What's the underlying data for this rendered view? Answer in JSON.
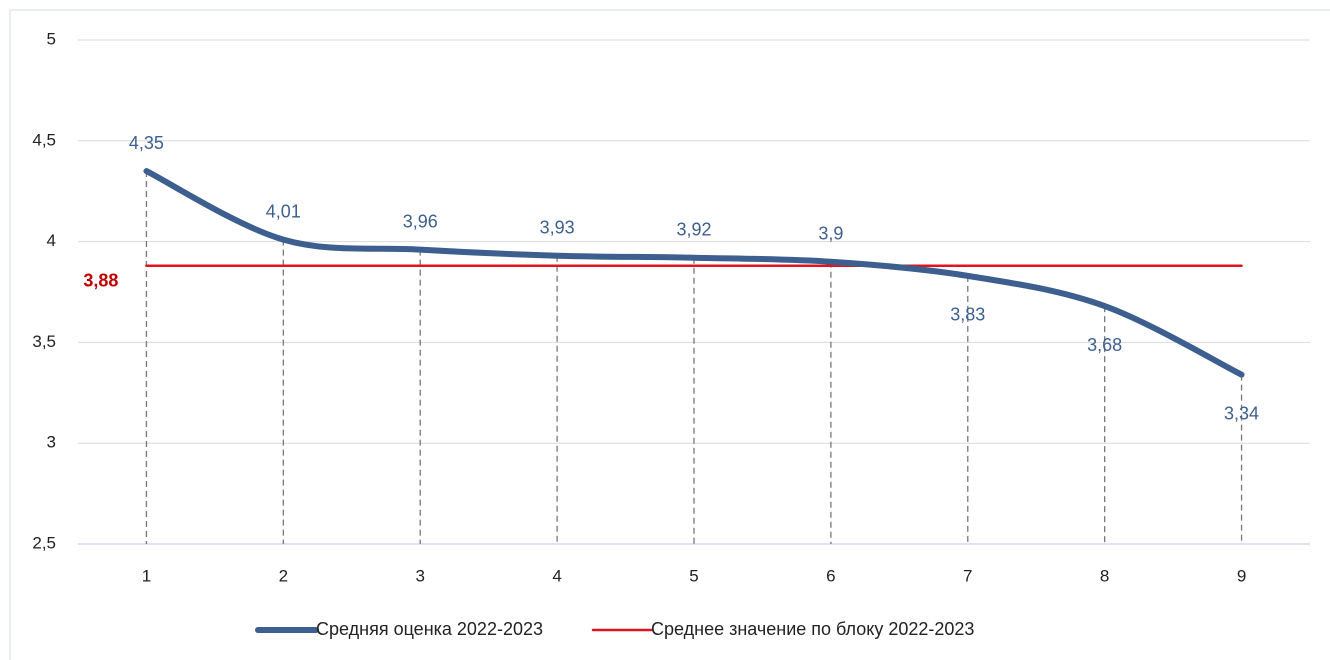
{
  "chart_data": {
    "type": "line",
    "categories": [
      "1",
      "2",
      "3",
      "4",
      "5",
      "6",
      "7",
      "8",
      "9"
    ],
    "series": [
      {
        "name": "Средняя оценка 2022-2023",
        "color": "#3d5f8f",
        "smooth": true,
        "values": [
          4.35,
          4.01,
          3.96,
          3.93,
          3.92,
          3.9,
          3.83,
          3.68,
          3.34
        ],
        "value_labels": [
          "4,35",
          "4,01",
          "3,96",
          "3,93",
          "3,92",
          "3,9",
          "3,83",
          "3,68",
          "3,34"
        ]
      },
      {
        "name": "Среднее значение по блоку 2022-2023",
        "color": "#e0141e",
        "smooth": false,
        "values": [
          3.88,
          3.88,
          3.88,
          3.88,
          3.88,
          3.88,
          3.88,
          3.88,
          3.88
        ],
        "value_labels": [
          "3,88",
          null,
          null,
          null,
          null,
          null,
          null,
          null,
          null
        ]
      }
    ],
    "ylim": [
      2.5,
      5
    ],
    "yticks": [
      {
        "value": 2.5,
        "label": "2,5"
      },
      3,
      {
        "value": 3.5,
        "label": "3,5"
      },
      4,
      {
        "value": 4.5,
        "label": "4,5"
      },
      5
    ],
    "grid": true,
    "drop_lines": true,
    "legend": "bottom"
  }
}
